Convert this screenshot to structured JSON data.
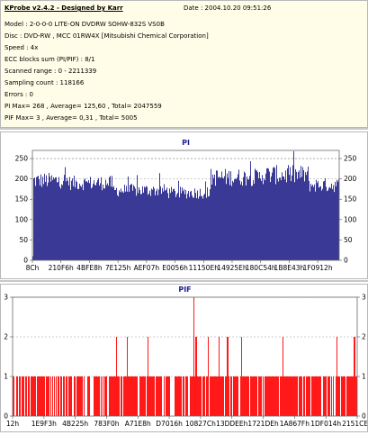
{
  "header": {
    "title": "KProbe v2.4.2 - Designed by Karr",
    "date": "Date : 2004.10.20 09:51:26",
    "lines": [
      "Model : 2-0-0-0 LITE-ON DVDRW SOHW-832S  VS0B",
      "Disc : DVD-RW , MCC 01RW4X  [Mitsubishi Chemical Corporation]",
      "Speed : 4x",
      "ECC blocks sum (PI/PIF) : 8/1",
      "Scanned range : 0 - 2211339",
      "Sampling count : 118166",
      "Errors : 0",
      "PI Max= 268 , Average= 125,60 , Total= 2047559",
      "PIF Max= 3 , Average= 0,31 , Total= 5005"
    ]
  },
  "chart_data": [
    {
      "type": "bar",
      "title": "PI",
      "ylim": [
        0,
        270
      ],
      "yticks": [
        0,
        50,
        100,
        150,
        200,
        250
      ],
      "xticks": [
        "8Ch",
        "210F6h",
        "4BFE8h",
        "7E125h",
        "AEF07h",
        "E0056h",
        "11150Eh",
        "14925Eh",
        "180C54h",
        "1B8E43h",
        "1F0912h"
      ],
      "color": "#3a3a96",
      "reference_lines": [
        200,
        250
      ],
      "profile": [
        {
          "from": 0.0,
          "to": 0.12,
          "level": 196,
          "spread": 20
        },
        {
          "from": 0.12,
          "to": 0.26,
          "level": 190,
          "spread": 18
        },
        {
          "from": 0.26,
          "to": 0.44,
          "level": 172,
          "spread": 16
        },
        {
          "from": 0.44,
          "to": 0.58,
          "level": 166,
          "spread": 15
        },
        {
          "from": 0.58,
          "to": 0.74,
          "level": 204,
          "spread": 22
        },
        {
          "from": 0.74,
          "to": 0.9,
          "level": 210,
          "spread": 24
        },
        {
          "from": 0.9,
          "to": 1.0,
          "level": 185,
          "spread": 18
        }
      ],
      "max": 268
    },
    {
      "type": "bar",
      "title": "PIF",
      "ylim": [
        0,
        3
      ],
      "yticks": [
        0,
        1,
        2,
        3
      ],
      "xticks": [
        "12h",
        "1E9F3h",
        "4B225h",
        "783F0h",
        "A71E8h",
        "D7016h",
        "10827Ch",
        "13DDEEh",
        "1721DEh",
        "1A867Fh",
        "1DF014h",
        "2151CEh"
      ],
      "color": "#ff0000",
      "reference_lines": [
        1,
        2,
        3
      ],
      "max": 3
    }
  ]
}
